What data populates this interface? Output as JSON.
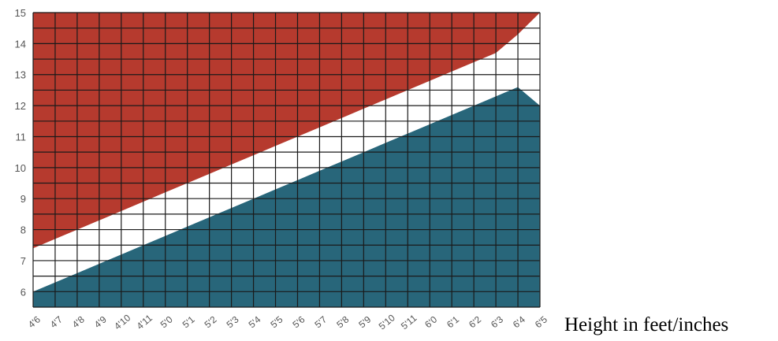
{
  "chart_data": {
    "type": "area",
    "xlabel": "Height in feet/inches",
    "ylabel": "",
    "title": "",
    "ylim": [
      5.5,
      15
    ],
    "y_ticks": [
      6,
      7,
      8,
      9,
      10,
      11,
      12,
      13,
      14,
      15
    ],
    "categories": [
      "4'6",
      "4'7",
      "4'8",
      "4'9",
      "4'10",
      "4'11",
      "5'0",
      "5'1",
      "5'2",
      "5'3",
      "5'4",
      "5'5",
      "5'6",
      "5'7",
      "5'8",
      "5'9",
      "5'10",
      "5'11",
      "6'0",
      "6'1",
      "6'2",
      "6'3",
      "6'4",
      "6'5"
    ],
    "series": [
      {
        "color": "#28667a",
        "values": [
          6.0,
          6.3,
          6.6,
          6.9,
          7.2,
          7.5,
          7.8,
          8.1,
          8.4,
          8.7,
          9.0,
          9.3,
          9.6,
          9.9,
          10.2,
          10.5,
          10.8,
          11.1,
          11.4,
          11.7,
          12.0,
          12.3,
          12.6,
          12.0
        ]
      },
      {
        "color": "#ffffff",
        "values": [
          7.4,
          7.7,
          8.0,
          8.3,
          8.6,
          8.9,
          9.2,
          9.5,
          9.8,
          10.1,
          10.4,
          10.7,
          11.0,
          11.3,
          11.6,
          11.9,
          12.2,
          12.5,
          12.8,
          13.1,
          13.4,
          13.7,
          14.3,
          15.0
        ]
      },
      {
        "color": "#b63a2e",
        "values": [
          15,
          15,
          15,
          15,
          15,
          15,
          15,
          15,
          15,
          15,
          15,
          15,
          15,
          15,
          15,
          15,
          15,
          15,
          15,
          15,
          15,
          15,
          15,
          15
        ]
      }
    ],
    "grid": true,
    "grid_color": "#1a1a1a"
  }
}
